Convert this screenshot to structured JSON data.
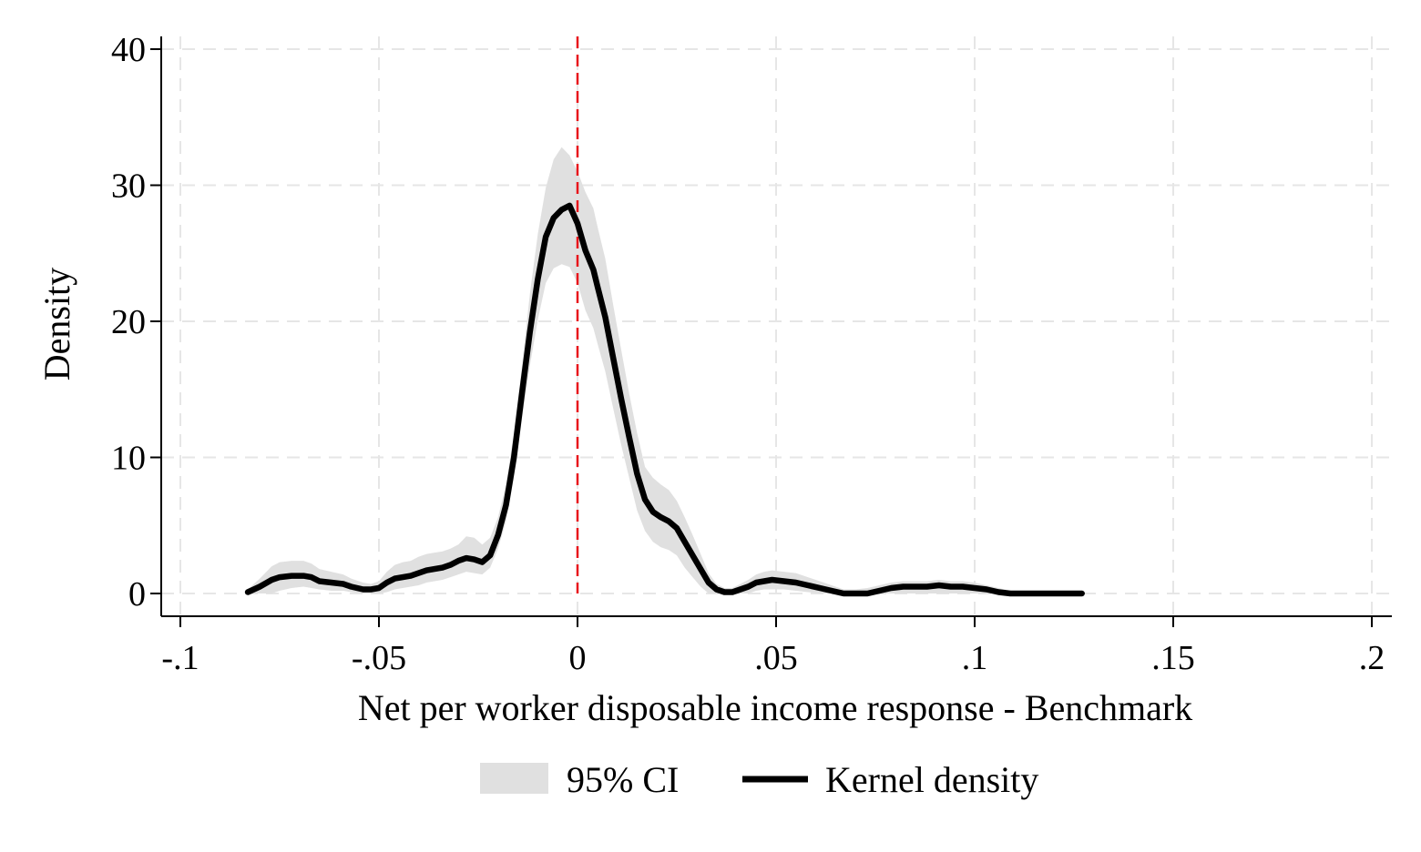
{
  "chart_data": {
    "type": "area",
    "xlabel": "Net per worker disposable income response - Benchmark",
    "ylabel": "Density",
    "xlim": [
      -0.1,
      0.2
    ],
    "ylim": [
      0,
      40
    ],
    "x_ticks": [
      {
        "value": -0.1,
        "label": "-.1"
      },
      {
        "value": -0.05,
        "label": "-.05"
      },
      {
        "value": 0,
        "label": "0"
      },
      {
        "value": 0.05,
        "label": ".05"
      },
      {
        "value": 0.1,
        "label": ".1"
      },
      {
        "value": 0.15,
        "label": ".15"
      },
      {
        "value": 0.2,
        "label": ".2"
      }
    ],
    "y_ticks": [
      {
        "value": 0,
        "label": "0"
      },
      {
        "value": 10,
        "label": "10"
      },
      {
        "value": 20,
        "label": "20"
      },
      {
        "value": 30,
        "label": "30"
      },
      {
        "value": 40,
        "label": "40"
      }
    ],
    "grid": true,
    "reference_line": {
      "x": 0,
      "color": "#e8141b",
      "style": "dashed"
    },
    "legend": {
      "placement": "bottom",
      "entries": [
        {
          "label": "95% CI",
          "kind": "band",
          "color": "#e0e0e0"
        },
        {
          "label": "Kernel density",
          "kind": "line",
          "color": "#000000"
        }
      ]
    },
    "series": [
      {
        "name": "Kernel density",
        "color": "#000000",
        "x": [
          -0.083,
          -0.08,
          -0.077,
          -0.075,
          -0.072,
          -0.069,
          -0.067,
          -0.065,
          -0.062,
          -0.059,
          -0.057,
          -0.054,
          -0.052,
          -0.05,
          -0.048,
          -0.046,
          -0.044,
          -0.042,
          -0.04,
          -0.038,
          -0.036,
          -0.034,
          -0.032,
          -0.03,
          -0.028,
          -0.026,
          -0.024,
          -0.022,
          -0.02,
          -0.018,
          -0.016,
          -0.014,
          -0.012,
          -0.01,
          -0.008,
          -0.006,
          -0.004,
          -0.002,
          0.0,
          0.002,
          0.004,
          0.005,
          0.007,
          0.009,
          0.011,
          0.013,
          0.015,
          0.017,
          0.019,
          0.021,
          0.023,
          0.025,
          0.027,
          0.029,
          0.031,
          0.033,
          0.035,
          0.037,
          0.039,
          0.041,
          0.043,
          0.045,
          0.047,
          0.049,
          0.052,
          0.055,
          0.058,
          0.061,
          0.064,
          0.067,
          0.07,
          0.073,
          0.076,
          0.079,
          0.082,
          0.085,
          0.088,
          0.091,
          0.094,
          0.097,
          0.1,
          0.103,
          0.106,
          0.109,
          0.112,
          0.115,
          0.118,
          0.121,
          0.124,
          0.127
        ],
        "y": [
          0.1,
          0.5,
          1.0,
          1.2,
          1.3,
          1.3,
          1.2,
          0.9,
          0.8,
          0.7,
          0.5,
          0.3,
          0.3,
          0.4,
          0.8,
          1.1,
          1.2,
          1.3,
          1.5,
          1.7,
          1.8,
          1.9,
          2.1,
          2.4,
          2.6,
          2.5,
          2.3,
          2.8,
          4.3,
          6.5,
          10.0,
          14.7,
          19.2,
          23.1,
          26.2,
          27.6,
          28.2,
          28.5,
          27.2,
          25.2,
          23.8,
          22.6,
          20.3,
          17.3,
          14.3,
          11.5,
          8.8,
          6.9,
          6.0,
          5.6,
          5.3,
          4.8,
          3.8,
          2.8,
          1.8,
          0.8,
          0.3,
          0.1,
          0.1,
          0.3,
          0.5,
          0.8,
          0.9,
          1.0,
          0.9,
          0.8,
          0.6,
          0.4,
          0.2,
          0.0,
          0.0,
          0.0,
          0.2,
          0.4,
          0.5,
          0.5,
          0.5,
          0.6,
          0.5,
          0.5,
          0.4,
          0.3,
          0.1,
          0.0,
          0.0,
          0.0,
          0.0,
          0.0,
          0.0,
          0.0
        ]
      },
      {
        "name": "95% CI",
        "color": "#e0e0e0",
        "x": [
          -0.083,
          -0.08,
          -0.077,
          -0.075,
          -0.072,
          -0.069,
          -0.067,
          -0.065,
          -0.062,
          -0.059,
          -0.057,
          -0.054,
          -0.052,
          -0.05,
          -0.048,
          -0.046,
          -0.044,
          -0.042,
          -0.04,
          -0.038,
          -0.036,
          -0.034,
          -0.032,
          -0.03,
          -0.028,
          -0.026,
          -0.024,
          -0.022,
          -0.02,
          -0.018,
          -0.016,
          -0.014,
          -0.012,
          -0.01,
          -0.008,
          -0.006,
          -0.004,
          -0.002,
          0.0,
          0.002,
          0.004,
          0.005,
          0.007,
          0.009,
          0.011,
          0.013,
          0.015,
          0.017,
          0.019,
          0.021,
          0.023,
          0.025,
          0.027,
          0.029,
          0.031,
          0.033,
          0.035,
          0.037,
          0.039,
          0.041,
          0.043,
          0.045,
          0.047,
          0.049,
          0.052,
          0.055,
          0.058,
          0.061,
          0.064,
          0.067,
          0.07,
          0.073,
          0.076,
          0.079,
          0.082,
          0.085,
          0.088,
          0.091,
          0.094,
          0.097,
          0.1,
          0.103,
          0.106,
          0.109,
          0.112,
          0.115,
          0.118,
          0.121,
          0.124,
          0.127
        ],
        "lower": [
          0.0,
          0.0,
          0.0,
          0.2,
          0.4,
          0.5,
          0.4,
          0.3,
          0.2,
          0.2,
          0.1,
          0.0,
          0.0,
          0.0,
          0.1,
          0.3,
          0.4,
          0.5,
          0.6,
          0.8,
          0.9,
          1.0,
          1.2,
          1.4,
          1.6,
          1.5,
          1.4,
          1.9,
          3.3,
          5.3,
          8.5,
          12.8,
          16.7,
          20.1,
          22.8,
          23.9,
          24.2,
          24.0,
          22.8,
          20.8,
          19.5,
          18.4,
          16.3,
          13.6,
          10.9,
          8.5,
          6.1,
          4.6,
          3.8,
          3.4,
          3.2,
          2.8,
          1.9,
          1.2,
          0.5,
          0.0,
          0.0,
          0.0,
          0.0,
          0.0,
          0.0,
          0.2,
          0.3,
          0.3,
          0.3,
          0.2,
          0.1,
          0.0,
          0.0,
          0.0,
          0.0,
          0.0,
          0.0,
          0.0,
          0.0,
          0.0,
          0.0,
          0.0,
          0.0,
          0.0,
          0.0,
          0.0,
          0.0,
          0.0,
          0.0,
          0.0,
          0.0,
          0.0,
          0.0,
          0.0
        ],
        "upper": [
          0.3,
          1.1,
          2.0,
          2.3,
          2.4,
          2.4,
          2.2,
          1.8,
          1.6,
          1.4,
          1.1,
          0.8,
          0.7,
          0.9,
          1.6,
          2.1,
          2.3,
          2.4,
          2.7,
          2.9,
          3.0,
          3.1,
          3.3,
          3.6,
          4.2,
          4.1,
          3.6,
          4.1,
          5.6,
          8.0,
          11.8,
          16.7,
          22.0,
          26.4,
          29.8,
          31.9,
          32.8,
          32.2,
          31.0,
          29.5,
          28.3,
          27.0,
          24.6,
          21.2,
          17.9,
          14.7,
          11.8,
          9.3,
          8.5,
          8.0,
          7.6,
          6.8,
          5.6,
          4.3,
          2.9,
          1.5,
          0.7,
          0.4,
          0.4,
          0.7,
          1.0,
          1.4,
          1.6,
          1.7,
          1.6,
          1.5,
          1.2,
          0.9,
          0.6,
          0.3,
          0.3,
          0.4,
          0.6,
          0.8,
          0.9,
          0.9,
          0.9,
          1.0,
          0.9,
          0.9,
          0.8,
          0.6,
          0.4,
          0.2,
          0.1,
          0.0,
          0.0,
          0.0,
          0.0,
          0.0
        ]
      }
    ]
  }
}
